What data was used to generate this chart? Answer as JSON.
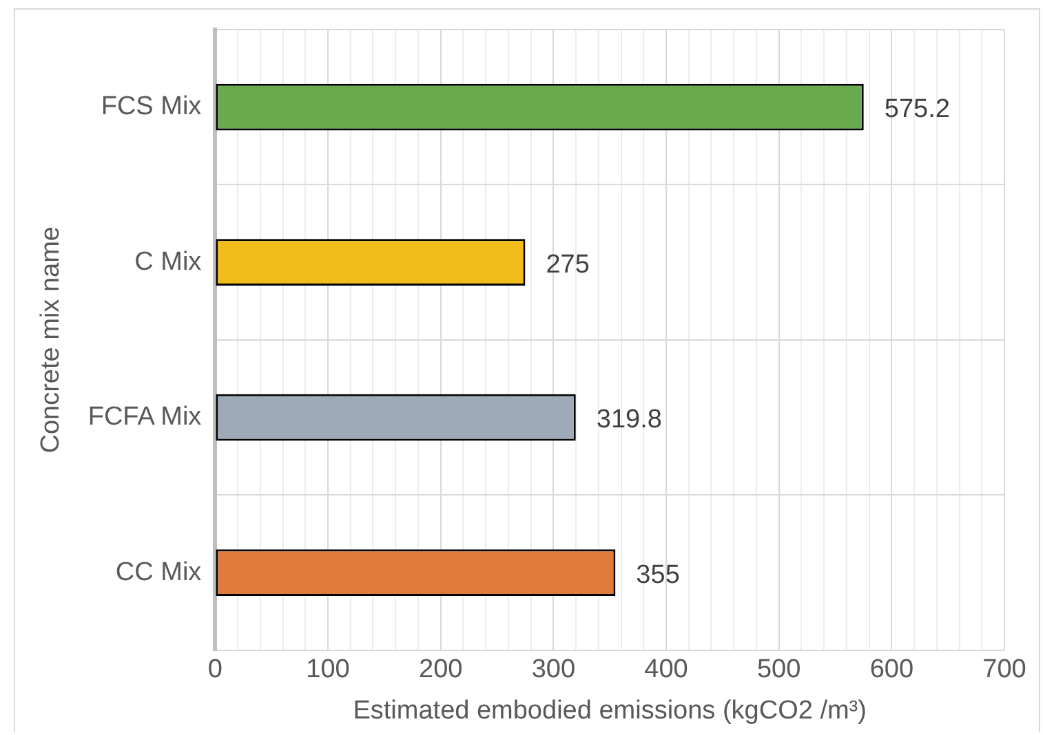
{
  "chart_data": {
    "type": "bar",
    "orientation": "horizontal",
    "xlabel": "Estimated embodied emissions (kgCO2 /m³)",
    "ylabel": "Concrete mix name",
    "categories": [
      "FCS Mix",
      "C Mix",
      "FCFA Mix",
      "CC Mix"
    ],
    "values": [
      575.2,
      275,
      319.8,
      355
    ],
    "colors": [
      "#6aab4f",
      "#f2bc1a",
      "#9eaab8",
      "#e07b3c"
    ],
    "xlim": [
      0,
      700
    ],
    "xticks": [
      0,
      {
        "value": 20,
        "label": null
      },
      {
        "value": 40,
        "label": null
      },
      {
        "value": 60,
        "label": null
      },
      {
        "value": 80,
        "label": null
      },
      100,
      {
        "value": 120,
        "label": null
      },
      {
        "value": 140,
        "label": null
      },
      {
        "value": 160,
        "label": null
      },
      {
        "value": 180,
        "label": null
      },
      200,
      {
        "value": 220,
        "label": null
      },
      {
        "value": 240,
        "label": null
      },
      {
        "value": 260,
        "label": null
      },
      {
        "value": 280,
        "label": null
      },
      300,
      {
        "value": 320,
        "label": null
      },
      {
        "value": 340,
        "label": null
      },
      {
        "value": 360,
        "label": null
      },
      {
        "value": 380,
        "label": null
      },
      400,
      {
        "value": 420,
        "label": null
      },
      {
        "value": 440,
        "label": null
      },
      {
        "value": 460,
        "label": null
      },
      {
        "value": 480,
        "label": null
      },
      500,
      {
        "value": 520,
        "label": null
      },
      {
        "value": 540,
        "label": null
      },
      {
        "value": 560,
        "label": null
      },
      {
        "value": 580,
        "label": null
      },
      600,
      {
        "value": 620,
        "label": null
      },
      {
        "value": 640,
        "label": null
      },
      {
        "value": 660,
        "label": null
      },
      {
        "value": 680,
        "label": null
      },
      700
    ],
    "grid": true,
    "data_labels": true,
    "legend": false
  }
}
